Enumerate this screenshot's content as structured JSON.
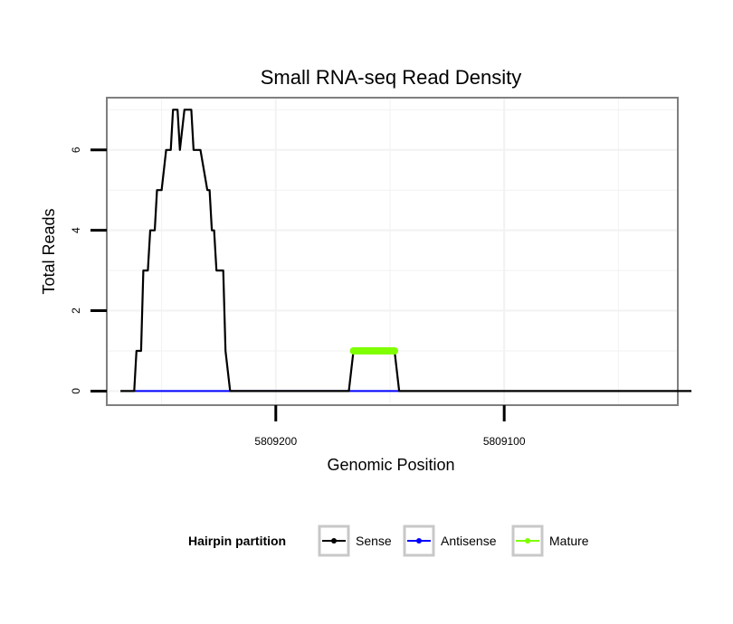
{
  "chart_data": {
    "type": "line",
    "title": "Small RNA-seq Read Density",
    "xlabel": "Genomic Position",
    "ylabel": "Total Reads",
    "x_reversed": true,
    "xlim": [
      5809274,
      5809024
    ],
    "ylim": [
      -0.35,
      7.3
    ],
    "x_ticks": [
      5809200,
      5809100
    ],
    "x_tick_labels": [
      "5809200",
      "5809100"
    ],
    "y_ticks": [
      0,
      2,
      4,
      6
    ],
    "y_tick_labels": [
      "0",
      "2",
      "4",
      "6"
    ],
    "grid": true,
    "legend": {
      "title": "Hairpin partition",
      "position": "bottom",
      "entries": [
        {
          "name": "Sense",
          "color": "#000000"
        },
        {
          "name": "Antisense",
          "color": "#0000ff"
        },
        {
          "name": "Mature",
          "color": "#7fff00"
        }
      ]
    },
    "series": [
      {
        "name": "Sense",
        "color": "#000000",
        "x": [
          5809268,
          5809262,
          5809261,
          5809259,
          5809258,
          5809256,
          5809255,
          5809253,
          5809252,
          5809250,
          5809248,
          5809246,
          5809245,
          5809243,
          5809242,
          5809240,
          5809238,
          5809237,
          5809236,
          5809233,
          5809230,
          5809229,
          5809228,
          5809227,
          5809226,
          5809223,
          5809222,
          5809220,
          5809218,
          5809217,
          5809216,
          5809215,
          5809168,
          5809166,
          5809148,
          5809146,
          5809018
        ],
        "y": [
          0,
          0,
          1,
          1,
          3,
          3,
          4,
          4,
          5,
          5,
          6,
          6,
          7,
          7,
          6,
          7,
          7,
          7,
          6,
          6,
          5,
          5,
          4,
          4,
          3,
          3,
          1,
          0,
          0,
          0,
          0,
          0,
          0,
          1,
          1,
          0,
          0
        ]
      },
      {
        "name": "Antisense",
        "color": "#0000ff",
        "x": [
          5809262,
          5809216,
          5809168,
          5809146
        ],
        "y": [
          0,
          0,
          0,
          0
        ]
      },
      {
        "name": "Mature",
        "color": "#7fff00",
        "x": [
          5809166,
          5809148
        ],
        "y": [
          1,
          1
        ]
      }
    ]
  }
}
